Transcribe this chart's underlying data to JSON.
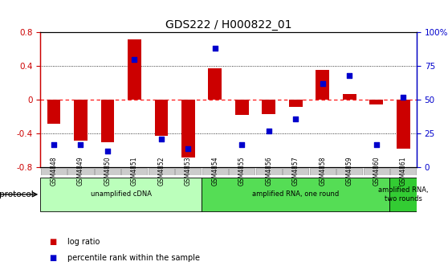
{
  "title": "GDS222 / H000822_01",
  "samples": [
    "GSM4848",
    "GSM4849",
    "GSM4850",
    "GSM4851",
    "GSM4852",
    "GSM4853",
    "GSM4854",
    "GSM4855",
    "GSM4856",
    "GSM4857",
    "GSM4858",
    "GSM4859",
    "GSM4860",
    "GSM4861"
  ],
  "log_ratio": [
    -0.28,
    -0.48,
    -0.5,
    0.72,
    -0.43,
    -0.68,
    0.37,
    -0.18,
    -0.17,
    -0.08,
    0.36,
    0.07,
    -0.05,
    -0.58
  ],
  "percentile_rank": [
    17,
    17,
    12,
    80,
    21,
    14,
    88,
    17,
    27,
    36,
    62,
    68,
    17,
    52
  ],
  "ylim_left": [
    -0.8,
    0.8
  ],
  "ylim_right": [
    0,
    100
  ],
  "yticks_left": [
    -0.8,
    -0.4,
    0.0,
    0.4,
    0.8
  ],
  "ytick_labels_left": [
    "-0.8",
    "-0.4",
    "0",
    "0.4",
    "0.8"
  ],
  "yticks_right": [
    0,
    25,
    50,
    75,
    100
  ],
  "ytick_labels_right": [
    "0",
    "25",
    "50",
    "75",
    "100%"
  ],
  "bar_color": "#cc0000",
  "dot_color": "#0000cc",
  "protocol_groups": [
    {
      "label": "unamplified cDNA",
      "start": 0,
      "end": 5,
      "color": "#bbffbb"
    },
    {
      "label": "amplified RNA, one round",
      "start": 6,
      "end": 12,
      "color": "#55dd55"
    },
    {
      "label": "amplified RNA,\ntwo rounds",
      "start": 13,
      "end": 13,
      "color": "#33cc33"
    }
  ],
  "legend_items": [
    {
      "color": "#cc0000",
      "label": "log ratio"
    },
    {
      "color": "#0000cc",
      "label": "percentile rank within the sample"
    }
  ],
  "protocol_label": "protocol",
  "background_color": "#ffffff",
  "tick_bg_color": "#cccccc",
  "left_axis_color": "#cc0000",
  "right_axis_color": "#0000cc"
}
